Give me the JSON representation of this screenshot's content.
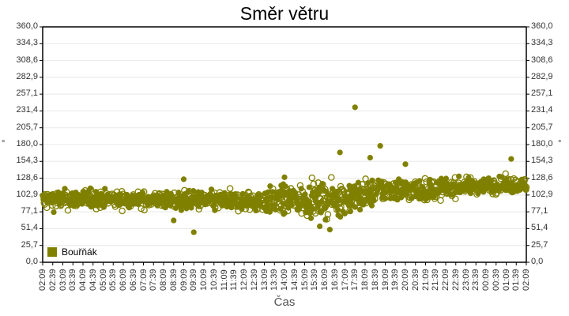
{
  "chart_data": {
    "type": "scatter",
    "title": "Směr větru",
    "xlabel": "Čas",
    "ylabel": "°",
    "ylabel_right": "°",
    "ylim": [
      0,
      360
    ],
    "yticks": [
      "0,0",
      "25,7",
      "51,4",
      "77,1",
      "102,9",
      "128,6",
      "154,3",
      "180,0",
      "205,7",
      "231,4",
      "257,1",
      "282,9",
      "308,6",
      "334,3",
      "360,0"
    ],
    "xticks": [
      "02:09",
      "02:39",
      "03:09",
      "03:39",
      "04:09",
      "04:39",
      "05:09",
      "05:39",
      "06:09",
      "06:39",
      "07:09",
      "07:39",
      "08:09",
      "08:39",
      "09:09",
      "09:39",
      "10:09",
      "10:39",
      "11:09",
      "11:39",
      "12:09",
      "12:39",
      "13:09",
      "13:39",
      "14:09",
      "14:39",
      "15:09",
      "15:39",
      "16:09",
      "16:39",
      "17:09",
      "17:39",
      "18:09",
      "18:39",
      "19:09",
      "19:39",
      "20:09",
      "20:39",
      "21:09",
      "21:39",
      "22:09",
      "22:39",
      "23:09",
      "23:39",
      "00:09",
      "00:39",
      "01:09",
      "01:39",
      "02:09"
    ],
    "grid": true,
    "legend_position": "bottom-left inside",
    "series": [
      {
        "name": "Bouřňák",
        "color": "#808000",
        "description": "Dense scatter of wind direction readings; baseline ~95° from 02:09–13:09, wider spread ~60–130° around 13:00–19:00 with outliers (~46° at 09:39, ~237° at 17:39, ~178° at 18:54), rising to ~115–120° from 19:00 to 02:09.",
        "trend": [
          {
            "time": "02:09",
            "mean": 95,
            "spread": 12
          },
          {
            "time": "04:09",
            "mean": 97,
            "spread": 12
          },
          {
            "time": "06:09",
            "mean": 96,
            "spread": 10
          },
          {
            "time": "08:09",
            "mean": 95,
            "spread": 10
          },
          {
            "time": "10:09",
            "mean": 94,
            "spread": 12
          },
          {
            "time": "12:09",
            "mean": 93,
            "spread": 12
          },
          {
            "time": "14:09",
            "mean": 95,
            "spread": 18
          },
          {
            "time": "16:09",
            "mean": 95,
            "spread": 20
          },
          {
            "time": "17:39",
            "mean": 100,
            "spread": 20
          },
          {
            "time": "19:09",
            "mean": 112,
            "spread": 14
          },
          {
            "time": "21:09",
            "mean": 110,
            "spread": 14
          },
          {
            "time": "23:09",
            "mean": 117,
            "spread": 10
          },
          {
            "time": "01:09",
            "mean": 118,
            "spread": 10
          },
          {
            "time": "02:09",
            "mean": 118,
            "spread": 8
          }
        ],
        "outliers": [
          {
            "time": "09:39",
            "value": 46
          },
          {
            "time": "08:39",
            "value": 64
          },
          {
            "time": "09:09",
            "value": 127
          },
          {
            "time": "17:39",
            "value": 237
          },
          {
            "time": "16:54",
            "value": 168
          },
          {
            "time": "18:54",
            "value": 178
          },
          {
            "time": "18:24",
            "value": 160
          },
          {
            "time": "16:24",
            "value": 50
          },
          {
            "time": "15:54",
            "value": 55
          },
          {
            "time": "14:09",
            "value": 130
          },
          {
            "time": "20:09",
            "value": 150
          },
          {
            "time": "01:24",
            "value": 158
          }
        ]
      }
    ]
  },
  "legend": {
    "label": "Bouřňák",
    "color": "#808000"
  }
}
